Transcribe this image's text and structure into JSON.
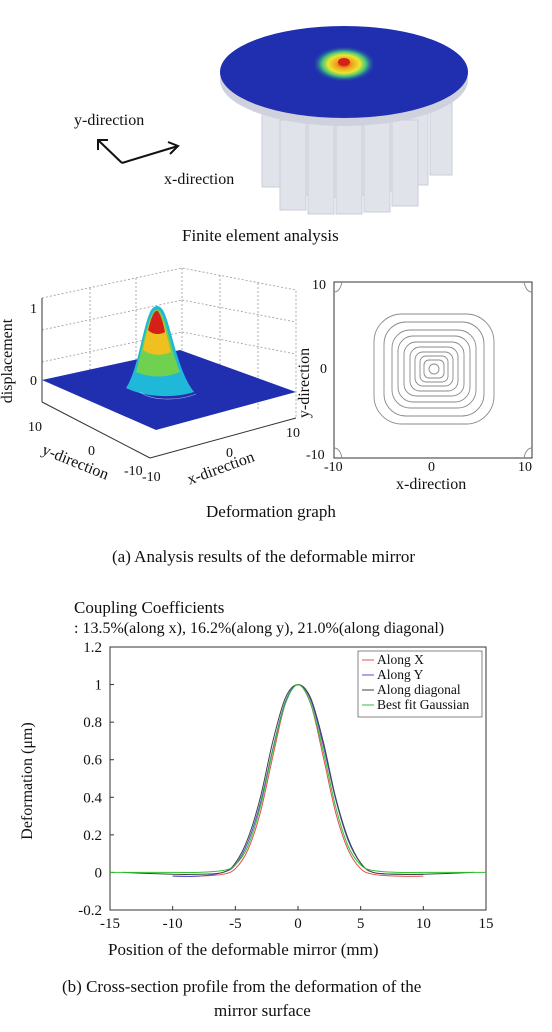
{
  "fea": {
    "y_direction": "y-direction",
    "x_direction": "x-direction",
    "caption": "Finite element analysis"
  },
  "surface": {
    "zlabel": "displacement",
    "ylabel": "y-direction",
    "xlabel": "x-direction",
    "z_ticks": [
      "1",
      "0"
    ],
    "y_ticks": [
      "10",
      "0",
      "-10"
    ],
    "x_ticks": [
      "-10",
      "0",
      "10"
    ]
  },
  "contour": {
    "xlabel": "x-direction",
    "ylabel": "y-direction",
    "x_ticks": [
      "-10",
      "0",
      "10"
    ],
    "y_ticks": [
      "10",
      "0",
      "-10"
    ]
  },
  "deformation_caption": "Deformation graph",
  "caption_a": "(a) Analysis results of the deformable mirror",
  "profile": {
    "title": "Coupling Coefficients",
    "subtitle": ": 13.5%(along x), 16.2%(along y), 21.0%(along diagonal)",
    "caption_line1": "(b) Cross-section profile from the deformation of the",
    "caption_line2": "mirror surface"
  },
  "colors": {
    "mirror_blue": "#1f2fb0",
    "peak_red": "#d42018",
    "along_x": "#e05050",
    "along_y": "#5050d0",
    "along_diagonal": "#404040",
    "best_fit": "#30c030"
  },
  "chart_data": {
    "type": "line",
    "title": "",
    "xlabel": "Position of the deformable mirror (mm)",
    "ylabel": "Deformation (μm)",
    "xlim": [
      -15,
      15
    ],
    "ylim": [
      -0.2,
      1.2
    ],
    "x_ticks": [
      "-15",
      "-10",
      "-5",
      "0",
      "5",
      "10",
      "15"
    ],
    "y_ticks": [
      "1.2",
      "1",
      "0.8",
      "0.6",
      "0.4",
      "0.2",
      "0",
      "-0.2"
    ],
    "grid": false,
    "legend_position": "top-right",
    "series": [
      {
        "name": "Along X",
        "color": "#e05050",
        "x": [
          -10,
          -8,
          -6,
          -5,
          -4,
          -3,
          -2,
          -1,
          0,
          1,
          2,
          3,
          4,
          5,
          6,
          8,
          10
        ],
        "y": [
          -0.02,
          -0.02,
          -0.01,
          0.02,
          0.12,
          0.32,
          0.62,
          0.9,
          1.0,
          0.9,
          0.62,
          0.32,
          0.12,
          0.02,
          -0.01,
          -0.02,
          -0.02
        ]
      },
      {
        "name": "Along Y",
        "color": "#5050d0",
        "x": [
          -10,
          -8,
          -6,
          -5,
          -4,
          -3,
          -2,
          -1,
          0,
          1,
          2,
          3,
          4,
          5,
          6,
          8,
          10
        ],
        "y": [
          -0.02,
          -0.02,
          0.0,
          0.04,
          0.16,
          0.37,
          0.66,
          0.91,
          1.0,
          0.92,
          0.68,
          0.39,
          0.17,
          0.05,
          0.0,
          -0.01,
          -0.01
        ]
      },
      {
        "name": "Along diagonal",
        "color": "#404040",
        "x": [
          -14,
          -10,
          -8,
          -6,
          -5,
          -4,
          -3,
          -2,
          -1,
          0,
          1,
          2,
          3,
          4,
          5,
          6,
          8,
          10,
          14
        ],
        "y": [
          0.0,
          -0.01,
          -0.01,
          0.0,
          0.05,
          0.18,
          0.4,
          0.7,
          0.93,
          1.0,
          0.93,
          0.7,
          0.4,
          0.18,
          0.05,
          0.0,
          -0.01,
          -0.01,
          0.0
        ]
      },
      {
        "name": "Best fit Gaussian",
        "color": "#30c030",
        "x": [
          -15,
          -10,
          -8,
          -6,
          -5,
          -4,
          -3,
          -2,
          -1,
          0,
          1,
          2,
          3,
          4,
          5,
          6,
          8,
          10,
          15
        ],
        "y": [
          0.0,
          0.0,
          0.0,
          0.01,
          0.04,
          0.14,
          0.35,
          0.65,
          0.9,
          1.0,
          0.9,
          0.65,
          0.35,
          0.14,
          0.04,
          0.01,
          0.0,
          0.0,
          0.0
        ]
      }
    ]
  }
}
